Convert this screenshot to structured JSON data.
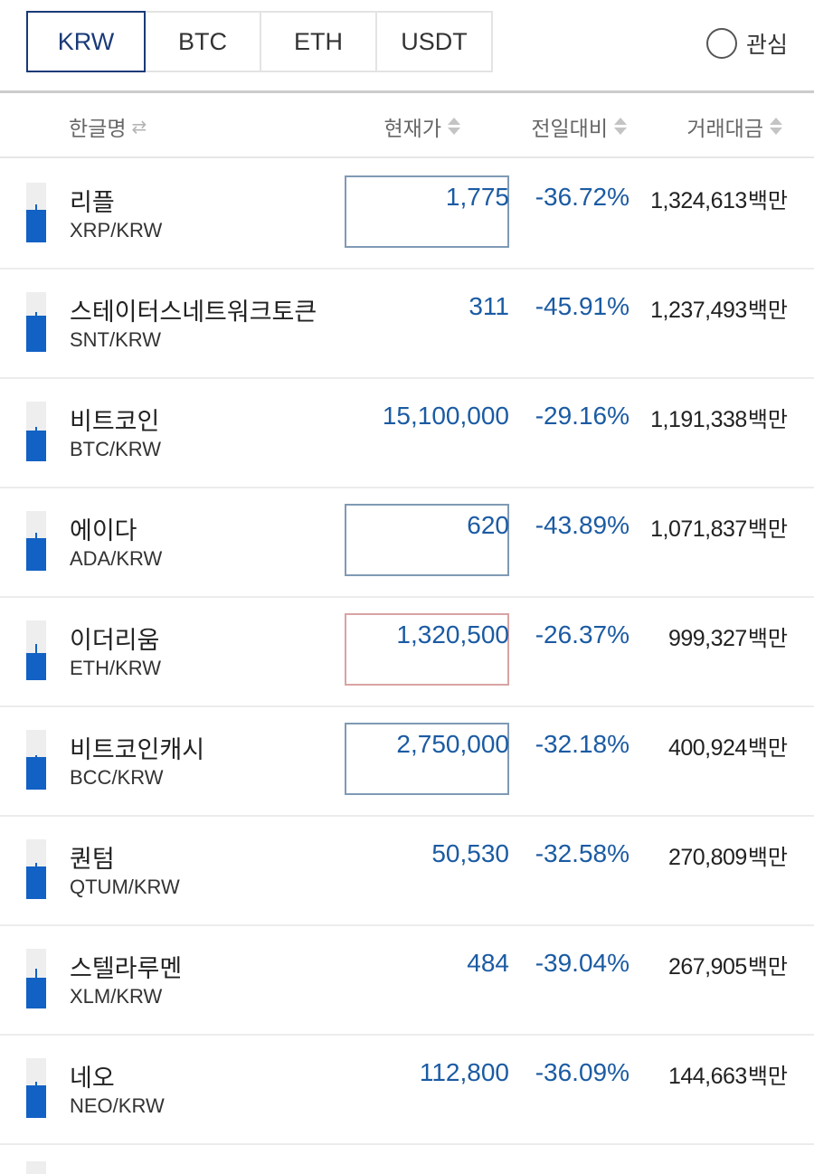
{
  "tabs": [
    {
      "label": "KRW",
      "active": true
    },
    {
      "label": "BTC",
      "active": false
    },
    {
      "label": "ETH",
      "active": false
    },
    {
      "label": "USDT",
      "active": false
    }
  ],
  "favorite": {
    "label": "관심",
    "checked": false
  },
  "header": {
    "name": "한글명",
    "price": "현재가",
    "change": "전일대비",
    "volume": "거래대금"
  },
  "colors": {
    "accent": "#1a3a78",
    "fall": "#1b5ba3",
    "candle": "#1261c4"
  },
  "rows": [
    {
      "name": "리플",
      "pair": "XRP/KRW",
      "price": "1,775",
      "change": "-36.72%",
      "volume": "1,324,613",
      "unit": "백만",
      "highlight": "blue"
    },
    {
      "name": "스테이터스네트워크토큰",
      "pair": "SNT/KRW",
      "price": "311",
      "change": "-45.91%",
      "volume": "1,237,493",
      "unit": "백만",
      "highlight": "none"
    },
    {
      "name": "비트코인",
      "pair": "BTC/KRW",
      "price": "15,100,000",
      "change": "-29.16%",
      "volume": "1,191,338",
      "unit": "백만",
      "highlight": "none"
    },
    {
      "name": "에이다",
      "pair": "ADA/KRW",
      "price": "620",
      "change": "-43.89%",
      "volume": "1,071,837",
      "unit": "백만",
      "highlight": "blue"
    },
    {
      "name": "이더리움",
      "pair": "ETH/KRW",
      "price": "1,320,500",
      "change": "-26.37%",
      "volume": "999,327",
      "unit": "백만",
      "highlight": "red"
    },
    {
      "name": "비트코인캐시",
      "pair": "BCC/KRW",
      "price": "2,750,000",
      "change": "-32.18%",
      "volume": "400,924",
      "unit": "백만",
      "highlight": "blue"
    },
    {
      "name": "퀀텀",
      "pair": "QTUM/KRW",
      "price": "50,530",
      "change": "-32.58%",
      "volume": "270,809",
      "unit": "백만",
      "highlight": "none"
    },
    {
      "name": "스텔라루멘",
      "pair": "XLM/KRW",
      "price": "484",
      "change": "-39.04%",
      "volume": "267,905",
      "unit": "백만",
      "highlight": "none"
    },
    {
      "name": "네오",
      "pair": "NEO/KRW",
      "price": "112,800",
      "change": "-36.09%",
      "volume": "144,663",
      "unit": "백만",
      "highlight": "none"
    }
  ]
}
